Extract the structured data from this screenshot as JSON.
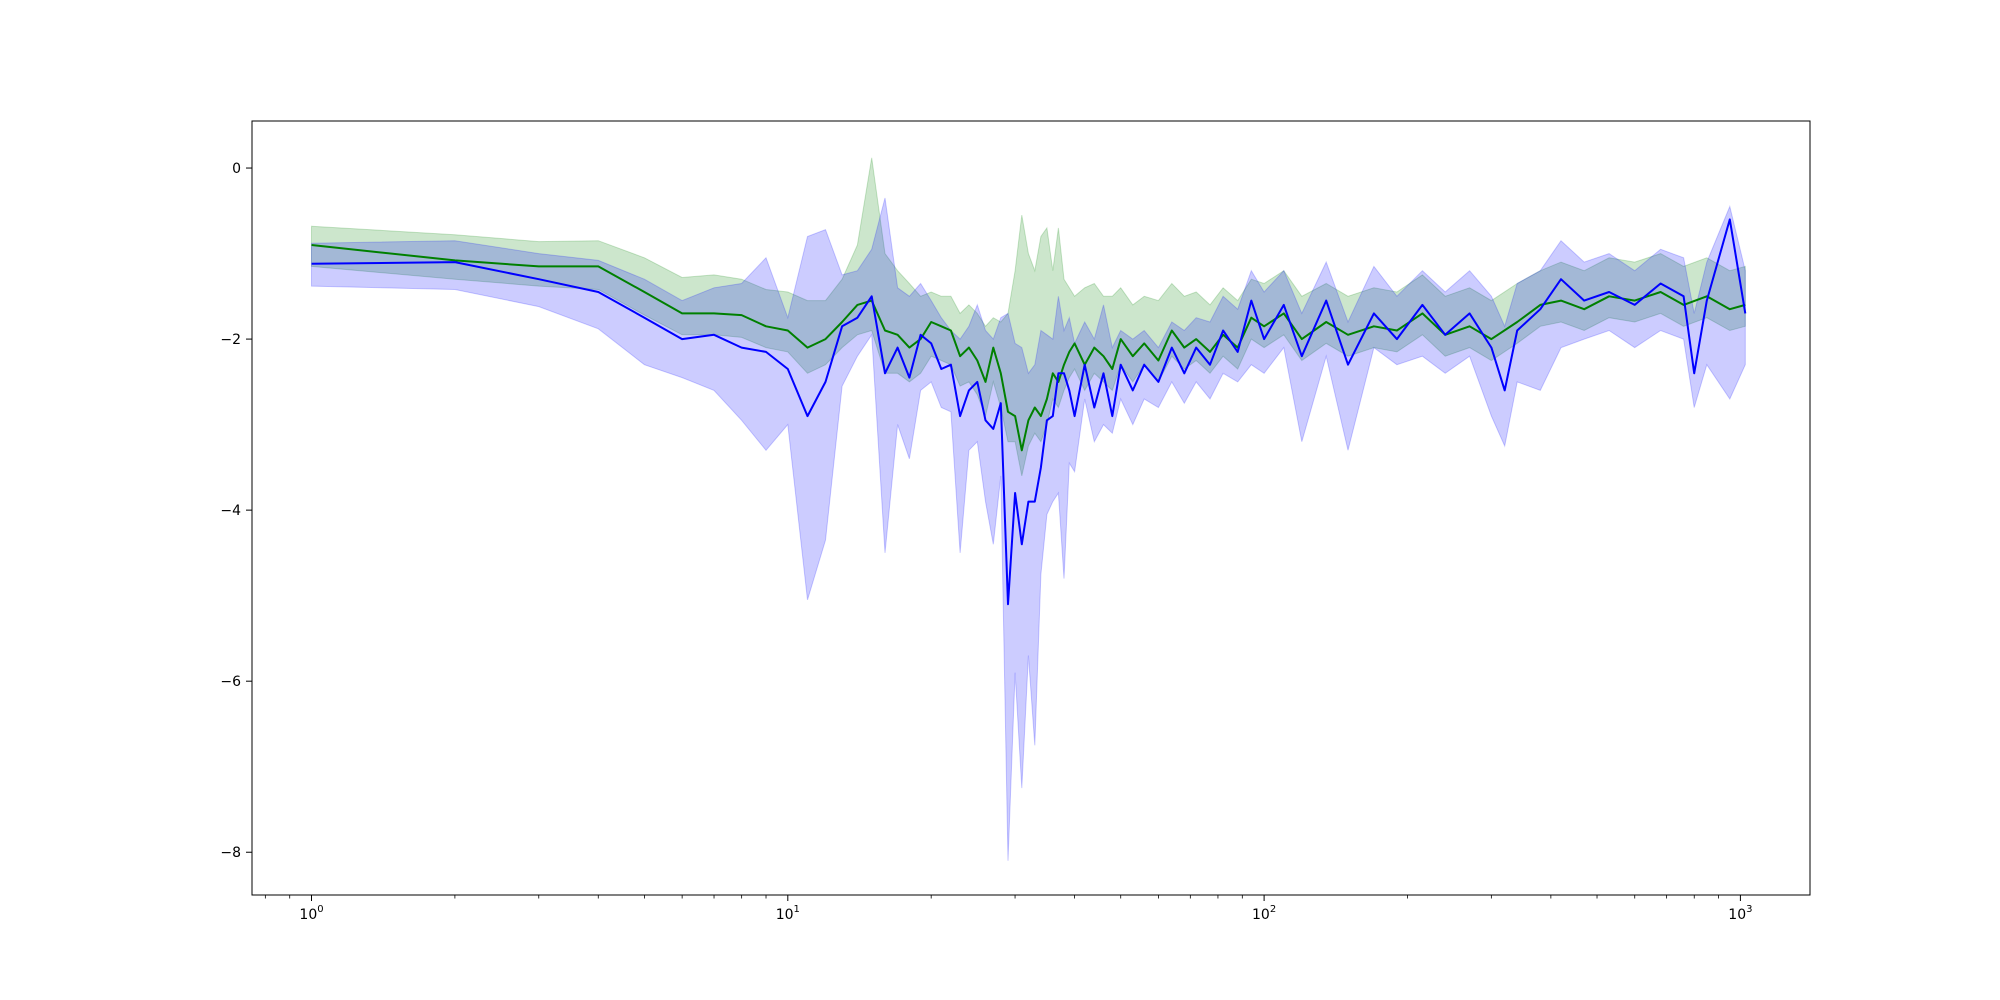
{
  "chart_data": {
    "type": "line",
    "title": "",
    "xlabel": "",
    "ylabel": "",
    "xscale": "log",
    "xlim": [
      0.75,
      1400
    ],
    "ylim": [
      -8.5,
      0.55
    ],
    "grid": false,
    "legend": "none",
    "x_ticks": [
      {
        "value": 1,
        "base": "10",
        "exp": "0"
      },
      {
        "value": 10,
        "base": "10",
        "exp": "1"
      },
      {
        "value": 100,
        "base": "10",
        "exp": "2"
      },
      {
        "value": 1000,
        "base": "10",
        "exp": "3"
      }
    ],
    "y_ticks": [
      {
        "value": 0,
        "label": "0"
      },
      {
        "value": -2,
        "label": "−2"
      },
      {
        "value": -4,
        "label": "−4"
      },
      {
        "value": -6,
        "label": "−6"
      },
      {
        "value": -8,
        "label": "−8"
      }
    ],
    "series": [
      {
        "color": "#008000",
        "band_color": "#008000",
        "band_opacity": 0.2,
        "x": [
          1,
          2,
          3,
          4,
          5,
          6,
          7,
          8,
          9,
          10,
          11,
          12,
          13,
          14,
          15,
          16,
          17,
          18,
          19,
          20,
          21,
          22,
          23,
          24,
          25,
          26,
          27,
          28,
          29,
          30,
          31,
          32,
          33,
          34,
          35,
          36,
          37,
          38,
          39,
          40,
          42,
          44,
          46,
          48,
          50,
          53,
          56,
          60,
          64,
          68,
          72,
          77,
          82,
          88,
          94,
          100,
          110,
          120,
          135,
          150,
          170,
          190,
          215,
          240,
          270,
          300,
          340,
          380,
          420,
          470,
          530,
          600,
          680,
          760,
          850,
          950,
          1024
        ],
        "values": [
          -0.9,
          -1.08,
          -1.15,
          -1.15,
          -1.45,
          -1.7,
          -1.7,
          -1.72,
          -1.85,
          -1.9,
          -2.1,
          -2.0,
          -1.8,
          -1.6,
          -1.55,
          -1.9,
          -1.95,
          -2.1,
          -2.0,
          -1.8,
          -1.85,
          -1.9,
          -2.2,
          -2.1,
          -2.25,
          -2.5,
          -2.1,
          -2.4,
          -2.85,
          -2.9,
          -3.3,
          -2.95,
          -2.8,
          -2.9,
          -2.7,
          -2.4,
          -2.5,
          -2.3,
          -2.15,
          -2.05,
          -2.3,
          -2.1,
          -2.2,
          -2.35,
          -2.0,
          -2.2,
          -2.05,
          -2.25,
          -1.9,
          -2.1,
          -2.0,
          -2.15,
          -1.95,
          -2.1,
          -1.75,
          -1.85,
          -1.7,
          -2.0,
          -1.8,
          -1.95,
          -1.85,
          -1.9,
          -1.7,
          -1.95,
          -1.85,
          -2.0,
          -1.8,
          -1.6,
          -1.55,
          -1.65,
          -1.5,
          -1.55,
          -1.45,
          -1.6,
          -1.5,
          -1.65,
          -1.6
        ],
        "lower": [
          -1.15,
          -1.3,
          -1.38,
          -1.42,
          -1.72,
          -1.95,
          -1.95,
          -1.98,
          -2.1,
          -2.15,
          -2.4,
          -2.3,
          -2.1,
          -1.95,
          -1.9,
          -2.4,
          -2.4,
          -2.5,
          -2.4,
          -2.2,
          -2.25,
          -2.3,
          -2.55,
          -2.5,
          -2.65,
          -2.9,
          -2.5,
          -2.8,
          -3.2,
          -3.2,
          -3.6,
          -3.25,
          -3.1,
          -3.2,
          -3.0,
          -2.7,
          -2.8,
          -2.6,
          -2.45,
          -2.35,
          -2.6,
          -2.4,
          -2.5,
          -2.6,
          -2.3,
          -2.5,
          -2.3,
          -2.5,
          -2.2,
          -2.35,
          -2.25,
          -2.4,
          -2.2,
          -2.35,
          -2.0,
          -2.1,
          -1.95,
          -2.25,
          -2.05,
          -2.2,
          -2.1,
          -2.15,
          -1.95,
          -2.2,
          -2.1,
          -2.25,
          -2.05,
          -1.85,
          -1.8,
          -1.9,
          -1.75,
          -1.8,
          -1.7,
          -1.85,
          -1.75,
          -1.9,
          -1.85
        ],
        "upper": [
          -0.68,
          -0.78,
          -0.86,
          -0.85,
          -1.05,
          -1.28,
          -1.25,
          -1.3,
          -1.42,
          -1.45,
          -1.55,
          -1.55,
          -1.3,
          -0.9,
          0.12,
          -1.0,
          -1.2,
          -1.35,
          -1.5,
          -1.45,
          -1.5,
          -1.5,
          -1.7,
          -1.6,
          -1.7,
          -1.85,
          -1.75,
          -1.8,
          -1.7,
          -1.2,
          -0.55,
          -1.0,
          -1.2,
          -0.8,
          -0.7,
          -1.2,
          -0.7,
          -1.3,
          -1.4,
          -1.5,
          -1.4,
          -1.35,
          -1.5,
          -1.5,
          -1.4,
          -1.6,
          -1.5,
          -1.55,
          -1.35,
          -1.5,
          -1.45,
          -1.6,
          -1.4,
          -1.55,
          -1.3,
          -1.35,
          -1.2,
          -1.5,
          -1.35,
          -1.5,
          -1.4,
          -1.45,
          -1.25,
          -1.5,
          -1.4,
          -1.55,
          -1.35,
          -1.2,
          -1.1,
          -1.2,
          -1.05,
          -1.1,
          -1.0,
          -1.15,
          -1.05,
          -1.2,
          -1.15
        ]
      },
      {
        "color": "#0000ff",
        "band_color": "#0000ff",
        "band_opacity": 0.2,
        "x": [
          1,
          2,
          3,
          4,
          5,
          6,
          7,
          8,
          9,
          10,
          11,
          12,
          13,
          14,
          15,
          16,
          17,
          18,
          19,
          20,
          21,
          22,
          23,
          24,
          25,
          26,
          27,
          28,
          29,
          30,
          31,
          32,
          33,
          34,
          35,
          36,
          37,
          38,
          39,
          40,
          42,
          44,
          46,
          48,
          50,
          53,
          56,
          60,
          64,
          68,
          72,
          77,
          82,
          88,
          94,
          100,
          110,
          120,
          135,
          150,
          170,
          190,
          215,
          240,
          270,
          300,
          320,
          340,
          380,
          420,
          470,
          530,
          600,
          680,
          760,
          800,
          850,
          950,
          1024
        ],
        "values": [
          -1.12,
          -1.1,
          -1.3,
          -1.45,
          -1.75,
          -2.0,
          -1.95,
          -2.1,
          -2.15,
          -2.35,
          -2.9,
          -2.5,
          -1.85,
          -1.75,
          -1.5,
          -2.4,
          -2.1,
          -2.45,
          -1.95,
          -2.05,
          -2.35,
          -2.3,
          -2.9,
          -2.6,
          -2.5,
          -2.95,
          -3.05,
          -2.75,
          -5.1,
          -3.8,
          -4.4,
          -3.9,
          -3.9,
          -3.5,
          -2.95,
          -2.9,
          -2.4,
          -2.4,
          -2.6,
          -2.9,
          -2.3,
          -2.8,
          -2.4,
          -2.9,
          -2.3,
          -2.6,
          -2.3,
          -2.5,
          -2.1,
          -2.4,
          -2.1,
          -2.3,
          -1.9,
          -2.15,
          -1.55,
          -2.0,
          -1.6,
          -2.2,
          -1.55,
          -2.3,
          -1.7,
          -2.0,
          -1.6,
          -1.95,
          -1.7,
          -2.1,
          -2.6,
          -1.9,
          -1.65,
          -1.3,
          -1.55,
          -1.45,
          -1.6,
          -1.35,
          -1.5,
          -2.4,
          -1.55,
          -0.6,
          -1.7
        ],
        "lower": [
          -1.38,
          -1.42,
          -1.62,
          -1.88,
          -2.3,
          -2.45,
          -2.6,
          -2.95,
          -3.3,
          -3.0,
          -5.05,
          -4.35,
          -2.55,
          -2.2,
          -1.95,
          -4.5,
          -3.0,
          -3.4,
          -2.6,
          -2.5,
          -2.8,
          -2.85,
          -4.5,
          -3.3,
          -3.2,
          -3.9,
          -4.4,
          -3.6,
          -8.1,
          -5.9,
          -7.25,
          -5.7,
          -6.75,
          -4.75,
          -4.05,
          -3.9,
          -3.8,
          -4.8,
          -3.45,
          -3.55,
          -2.7,
          -3.2,
          -3.0,
          -3.1,
          -2.7,
          -3.0,
          -2.7,
          -2.8,
          -2.5,
          -2.75,
          -2.5,
          -2.7,
          -2.4,
          -2.5,
          -2.3,
          -2.4,
          -2.1,
          -3.2,
          -2.2,
          -3.3,
          -2.1,
          -2.3,
          -2.2,
          -2.4,
          -2.2,
          -2.9,
          -3.25,
          -2.5,
          -2.6,
          -2.1,
          -2.0,
          -1.9,
          -2.1,
          -1.9,
          -2.0,
          -2.8,
          -2.3,
          -2.7,
          -2.3
        ],
        "upper": [
          -0.88,
          -0.85,
          -1.0,
          -1.08,
          -1.3,
          -1.55,
          -1.4,
          -1.35,
          -1.05,
          -1.75,
          -0.8,
          -0.72,
          -1.25,
          -1.2,
          -0.95,
          -0.35,
          -1.4,
          -1.5,
          -1.35,
          -1.55,
          -1.75,
          -1.9,
          -2.0,
          -1.85,
          -1.6,
          -1.9,
          -2.0,
          -1.75,
          -1.7,
          -2.05,
          -2.1,
          -2.4,
          -2.3,
          -1.9,
          -1.95,
          -2.0,
          -1.5,
          -1.9,
          -1.75,
          -2.05,
          -1.8,
          -2.0,
          -1.6,
          -2.1,
          -1.9,
          -2.0,
          -1.9,
          -2.1,
          -1.8,
          -1.9,
          -1.75,
          -1.8,
          -1.5,
          -1.65,
          -1.2,
          -1.45,
          -1.2,
          -1.7,
          -1.1,
          -1.8,
          -1.15,
          -1.5,
          -1.2,
          -1.45,
          -1.2,
          -1.5,
          -1.85,
          -1.35,
          -1.2,
          -0.85,
          -1.1,
          -1.0,
          -1.2,
          -0.95,
          -1.05,
          -1.7,
          -1.1,
          -0.45,
          -1.2
        ]
      }
    ]
  }
}
